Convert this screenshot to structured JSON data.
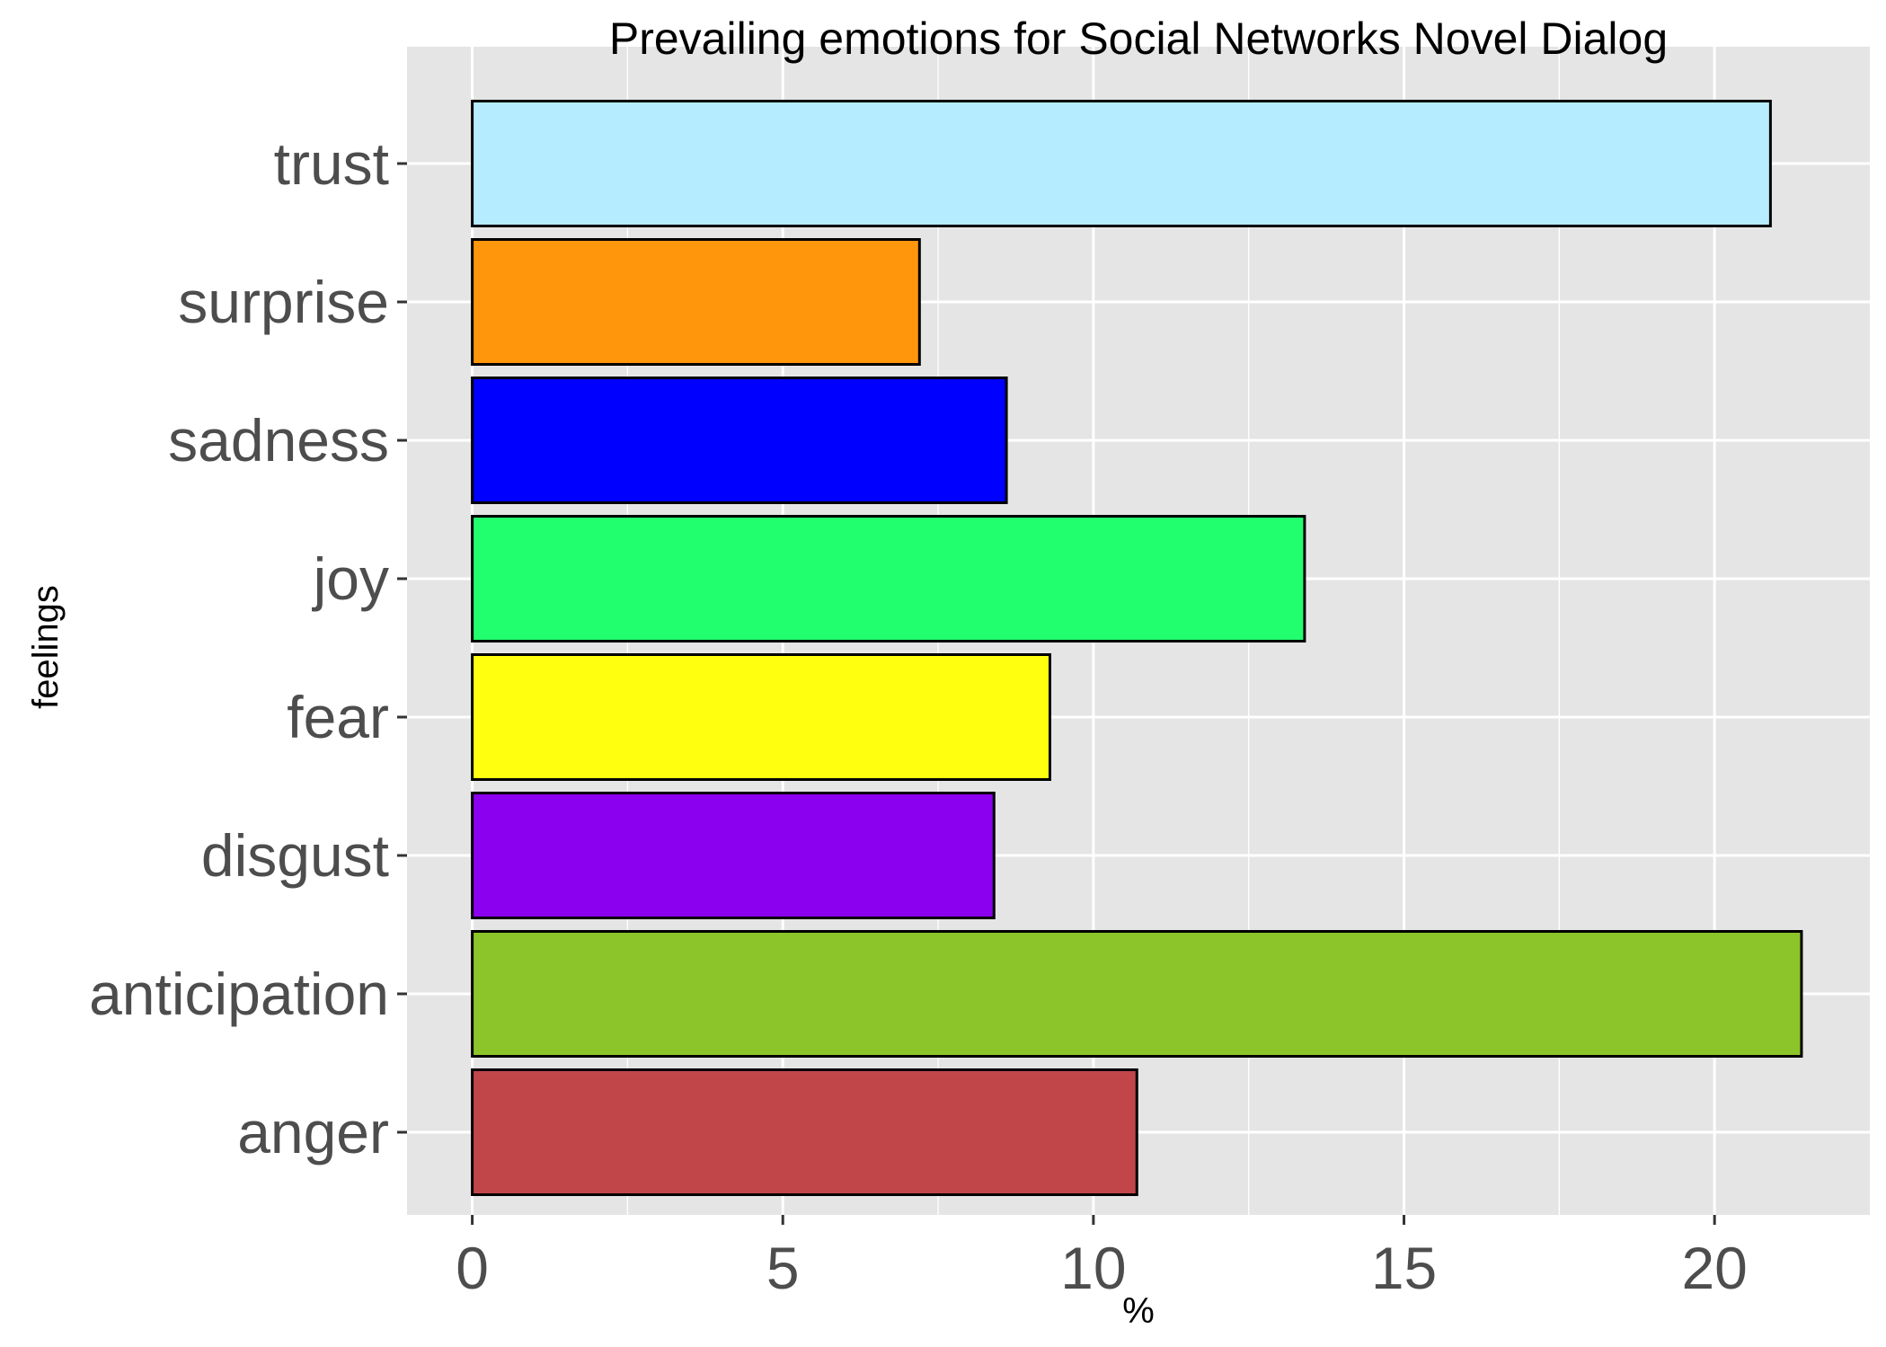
{
  "chart_data": {
    "type": "bar",
    "orientation": "horizontal",
    "title": "Prevailing emotions for Social Networks Novel Dialog",
    "xlabel": "%",
    "ylabel": "feelings",
    "xlim": [
      -1.05,
      22.5
    ],
    "xticks": [
      0,
      5,
      10,
      15,
      20
    ],
    "xtick_labels": [
      "0",
      "5",
      "10",
      "15",
      "20"
    ],
    "grid": true,
    "legend": "none",
    "categories": [
      "anger",
      "anticipation",
      "disgust",
      "fear",
      "joy",
      "sadness",
      "surprise",
      "trust"
    ],
    "values": [
      10.7,
      21.4,
      8.4,
      9.3,
      13.4,
      8.6,
      7.2,
      20.9
    ],
    "colors": [
      "#C1464A",
      "#8CC52A",
      "#8B00EE",
      "#FFFF0F",
      "#22FF6E",
      "#0000FF",
      "#FF960C",
      "#B5ECFF"
    ],
    "bar_edge_color": "#000000",
    "panel_background": "#E5E5E5",
    "grid_color": "#FFFFFF"
  }
}
